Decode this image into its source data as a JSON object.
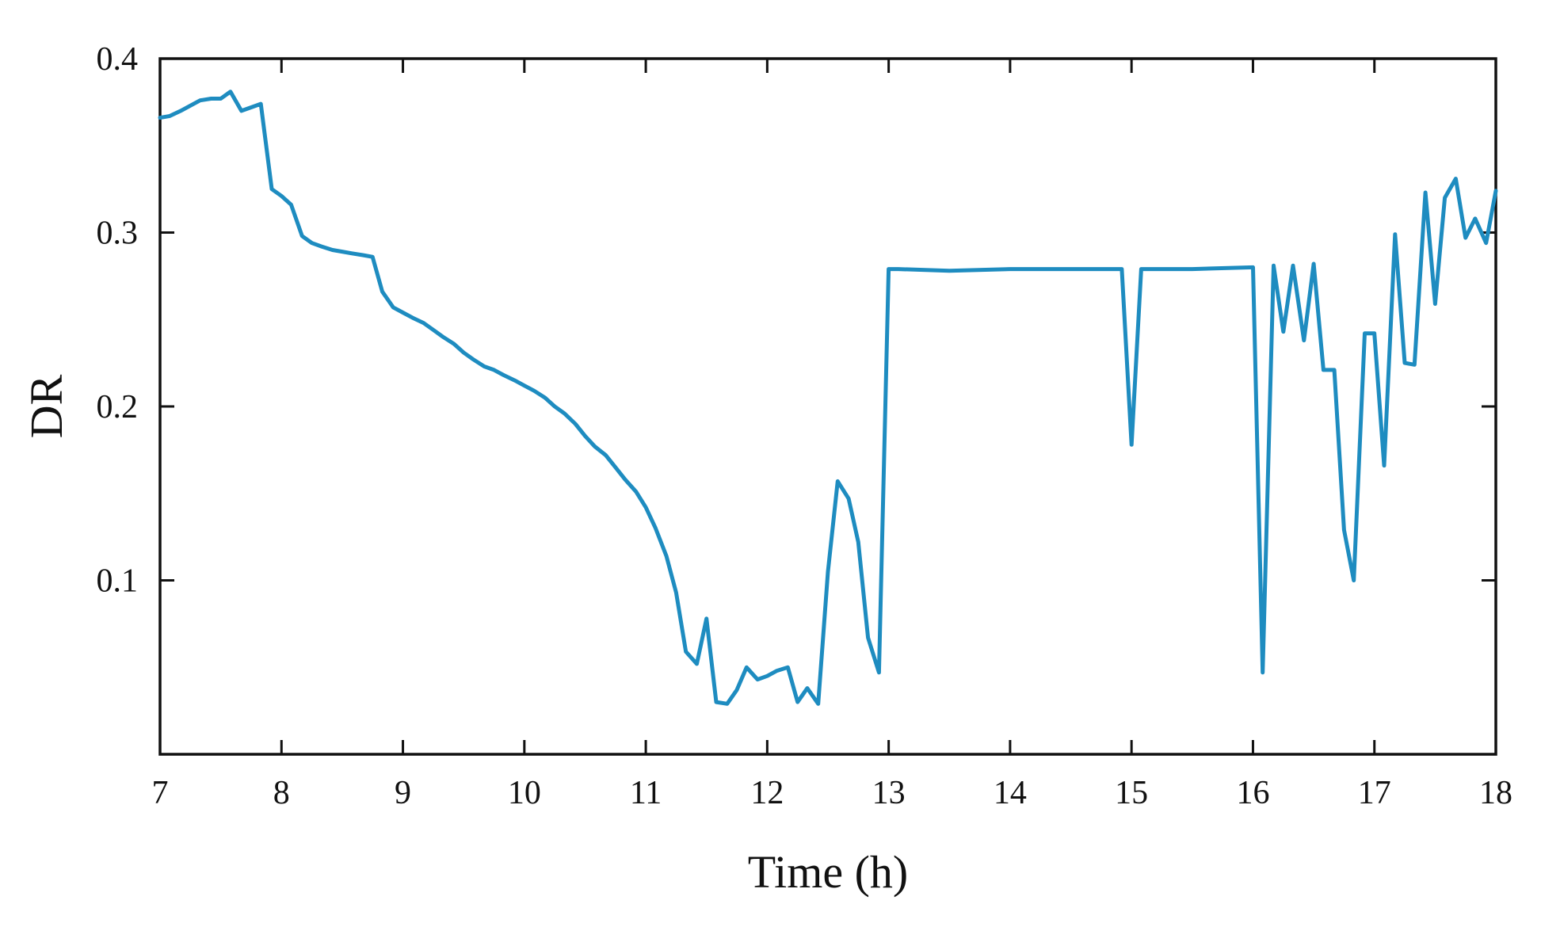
{
  "chart_data": {
    "type": "line",
    "title": "",
    "xlabel": "Time (h)",
    "ylabel": "DR",
    "xlim": [
      7,
      18
    ],
    "ylim": [
      0,
      0.4
    ],
    "xticks": [
      7,
      8,
      9,
      10,
      11,
      12,
      13,
      14,
      15,
      16,
      17,
      18
    ],
    "xtick_labels": [
      "7",
      "8",
      "9",
      "10",
      "11",
      "12",
      "13",
      "14",
      "15",
      "16",
      "17",
      "18"
    ],
    "yticks": [
      0.1,
      0.2,
      0.3,
      0.4
    ],
    "ytick_labels": [
      "0.1",
      "0.2",
      "0.3",
      "0.4"
    ],
    "grid": false,
    "legend": "none",
    "series": [
      {
        "color": "#1E8CC0",
        "x": [
          7.0,
          7.08,
          7.17,
          7.25,
          7.33,
          7.42,
          7.5,
          7.58,
          7.67,
          7.75,
          7.83,
          7.92,
          8.0,
          8.08,
          8.17,
          8.25,
          8.33,
          8.42,
          8.5,
          8.58,
          8.67,
          8.75,
          8.83,
          8.92,
          9.0,
          9.08,
          9.17,
          9.25,
          9.33,
          9.42,
          9.5,
          9.58,
          9.67,
          9.75,
          9.83,
          9.92,
          10.0,
          10.08,
          10.17,
          10.25,
          10.33,
          10.42,
          10.5,
          10.58,
          10.67,
          10.75,
          10.83,
          10.92,
          11.0,
          11.08,
          11.17,
          11.25,
          11.33,
          11.42,
          11.5,
          11.58,
          11.67,
          11.75,
          11.83,
          11.92,
          12.0,
          12.08,
          12.17,
          12.25,
          12.33,
          12.42,
          12.5,
          12.58,
          12.67,
          12.75,
          12.83,
          12.92,
          13.0,
          13.08,
          13.5,
          14.0,
          14.5,
          14.92,
          15.0,
          15.08,
          15.5,
          16.0,
          16.08,
          16.17,
          16.25,
          16.33,
          16.42,
          16.5,
          16.58,
          16.67,
          16.75,
          16.83,
          16.92,
          17.0,
          17.08,
          17.17,
          17.25,
          17.33,
          17.42,
          17.5,
          17.58,
          17.67,
          17.75,
          17.83,
          17.92,
          18.0
        ],
        "y": [
          0.366,
          0.367,
          0.37,
          0.373,
          0.376,
          0.377,
          0.377,
          0.381,
          0.37,
          0.372,
          0.374,
          0.325,
          0.321,
          0.316,
          0.298,
          0.294,
          0.292,
          0.29,
          0.289,
          0.288,
          0.287,
          0.286,
          0.266,
          0.257,
          0.254,
          0.251,
          0.248,
          0.244,
          0.24,
          0.236,
          0.231,
          0.227,
          0.223,
          0.221,
          0.218,
          0.215,
          0.212,
          0.209,
          0.205,
          0.2,
          0.196,
          0.19,
          0.183,
          0.177,
          0.172,
          0.165,
          0.158,
          0.151,
          0.142,
          0.13,
          0.114,
          0.093,
          0.059,
          0.052,
          0.078,
          0.03,
          0.029,
          0.037,
          0.05,
          0.043,
          0.045,
          0.048,
          0.05,
          0.03,
          0.038,
          0.029,
          0.105,
          0.157,
          0.147,
          0.122,
          0.067,
          0.047,
          0.279,
          0.279,
          0.278,
          0.279,
          0.279,
          0.279,
          0.178,
          0.279,
          0.279,
          0.28,
          0.047,
          0.281,
          0.243,
          0.281,
          0.238,
          0.282,
          0.221,
          0.221,
          0.129,
          0.1,
          0.242,
          0.242,
          0.166,
          0.299,
          0.225,
          0.224,
          0.323,
          0.259,
          0.32,
          0.331,
          0.297,
          0.308,
          0.294,
          0.324
        ]
      }
    ]
  }
}
